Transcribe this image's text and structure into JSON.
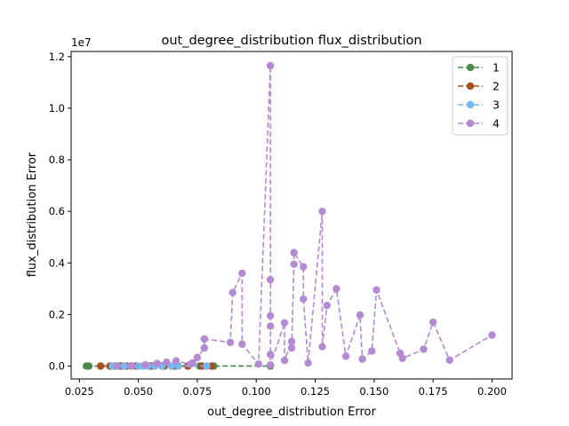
{
  "chart_data": {
    "type": "line",
    "title": "out_degree_distribution flux_distribution",
    "xlabel": "out_degree_distribution Error",
    "ylabel": "flux_distribution Error",
    "offset_text": "1e7",
    "xlim": [
      0.0215,
      0.2085
    ],
    "ylim": [
      -500000,
      12200000
    ],
    "x_ticks": [
      0.025,
      0.05,
      0.075,
      0.1,
      0.125,
      0.15,
      0.175,
      0.2
    ],
    "x_tick_labels": [
      "0.025",
      "0.050",
      "0.075",
      "0.100",
      "0.125",
      "0.150",
      "0.175",
      "0.200"
    ],
    "y_ticks": [
      0,
      2000000,
      4000000,
      6000000,
      8000000,
      10000000,
      12000000
    ],
    "y_tick_labels": [
      "0.0",
      "0.2",
      "0.4",
      "0.6",
      "0.8",
      "1.0",
      "1.2"
    ],
    "legend_position": "top-right",
    "grid": false,
    "series": [
      {
        "name": "1",
        "color": "#4a8c4f",
        "x": [
          0.028,
          0.029,
          0.042,
          0.047,
          0.055,
          0.06,
          0.066,
          0.071,
          0.076,
          0.079,
          0.082,
          0.106
        ],
        "y": [
          0,
          0,
          0,
          0,
          0,
          0,
          0,
          0,
          0,
          0,
          0,
          0
        ]
      },
      {
        "name": "2",
        "color": "#a6501f",
        "x": [
          0.034,
          0.038,
          0.04,
          0.043,
          0.045,
          0.049,
          0.052,
          0.056,
          0.061,
          0.065,
          0.071,
          0.077,
          0.081
        ],
        "y": [
          0,
          0,
          0,
          0,
          0,
          0,
          0,
          0,
          0,
          0,
          0,
          0,
          0
        ]
      },
      {
        "name": "3",
        "color": "#74b9f2",
        "x": [
          0.039,
          0.041,
          0.044,
          0.047,
          0.05,
          0.052,
          0.054,
          0.057,
          0.06,
          0.064,
          0.067,
          0.079
        ],
        "y": [
          0,
          0,
          0,
          0,
          0,
          0,
          0,
          0,
          0,
          0,
          0,
          0
        ]
      },
      {
        "name": "4",
        "color": "#b48ad2",
        "x": [
          0.041,
          0.047,
          0.053,
          0.058,
          0.062,
          0.066,
          0.072,
          0.073,
          0.075,
          0.078,
          0.078,
          0.089,
          0.09,
          0.094,
          0.094,
          0.101,
          0.106,
          0.106,
          0.106,
          0.106,
          0.106,
          0.106,
          0.112,
          0.112,
          0.115,
          0.115,
          0.116,
          0.116,
          0.12,
          0.12,
          0.122,
          0.128,
          0.128,
          0.13,
          0.134,
          0.138,
          0.144,
          0.145,
          0.149,
          0.151,
          0.161,
          0.162,
          0.171,
          0.175,
          0.182,
          0.2
        ],
        "y": [
          0,
          10000,
          50000,
          100000,
          150000,
          200000,
          70000,
          120000,
          330000,
          700000,
          1050000,
          920000,
          2850000,
          3600000,
          850000,
          80000,
          11650000,
          3350000,
          1950000,
          1550000,
          450000,
          40000,
          1680000,
          220000,
          950000,
          700000,
          3950000,
          4400000,
          3850000,
          2600000,
          120000,
          6000000,
          750000,
          2350000,
          3000000,
          380000,
          1980000,
          270000,
          580000,
          2950000,
          500000,
          300000,
          650000,
          1700000,
          230000,
          1200000
        ]
      }
    ]
  }
}
